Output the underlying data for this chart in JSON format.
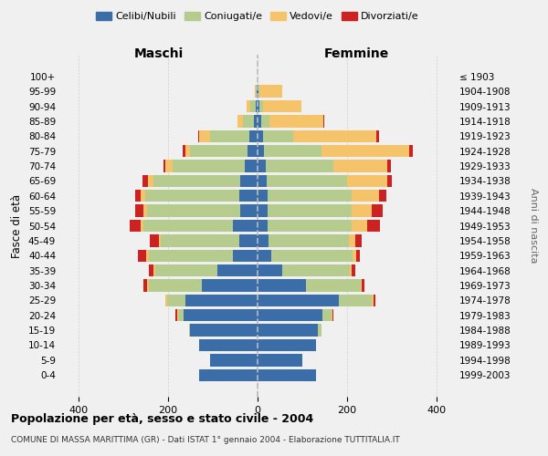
{
  "age_groups": [
    "0-4",
    "5-9",
    "10-14",
    "15-19",
    "20-24",
    "25-29",
    "30-34",
    "35-39",
    "40-44",
    "45-49",
    "50-54",
    "55-59",
    "60-64",
    "65-69",
    "70-74",
    "75-79",
    "80-84",
    "85-89",
    "90-94",
    "95-99",
    "100+"
  ],
  "birth_years": [
    "1999-2003",
    "1994-1998",
    "1989-1993",
    "1984-1988",
    "1979-1983",
    "1974-1978",
    "1969-1973",
    "1964-1968",
    "1959-1963",
    "1954-1958",
    "1949-1953",
    "1944-1948",
    "1939-1943",
    "1934-1938",
    "1929-1933",
    "1924-1928",
    "1919-1923",
    "1914-1918",
    "1909-1913",
    "1904-1908",
    "≤ 1903"
  ],
  "colors": {
    "celibe": "#3b6da8",
    "coniugato": "#b5cc8e",
    "vedovo": "#f5c46a",
    "divorziato": "#cc2222"
  },
  "maschi": {
    "celibe": [
      130,
      105,
      130,
      150,
      165,
      160,
      125,
      90,
      55,
      40,
      55,
      38,
      40,
      38,
      28,
      22,
      18,
      8,
      4,
      2,
      0
    ],
    "coniugato": [
      0,
      0,
      0,
      3,
      12,
      42,
      118,
      138,
      188,
      175,
      200,
      208,
      210,
      195,
      162,
      128,
      88,
      25,
      12,
      2,
      0
    ],
    "vedovo": [
      0,
      0,
      0,
      0,
      3,
      3,
      3,
      4,
      5,
      5,
      5,
      8,
      10,
      12,
      15,
      10,
      25,
      12,
      8,
      2,
      0
    ],
    "divorziato": [
      0,
      0,
      0,
      0,
      3,
      0,
      8,
      10,
      18,
      20,
      25,
      18,
      12,
      12,
      5,
      8,
      2,
      0,
      0,
      0,
      0
    ]
  },
  "femmine": {
    "nubile": [
      130,
      100,
      130,
      135,
      145,
      182,
      108,
      55,
      30,
      25,
      22,
      22,
      22,
      20,
      18,
      15,
      12,
      8,
      5,
      2,
      0
    ],
    "coniugata": [
      0,
      0,
      0,
      8,
      20,
      72,
      122,
      150,
      182,
      178,
      188,
      188,
      188,
      180,
      152,
      128,
      68,
      18,
      8,
      2,
      0
    ],
    "vedova": [
      0,
      0,
      0,
      0,
      2,
      5,
      3,
      5,
      8,
      15,
      35,
      45,
      60,
      90,
      120,
      195,
      185,
      120,
      85,
      50,
      0
    ],
    "divorziata": [
      0,
      0,
      0,
      0,
      3,
      3,
      5,
      8,
      8,
      15,
      28,
      25,
      18,
      10,
      8,
      8,
      5,
      2,
      0,
      0,
      0
    ]
  },
  "xlim": 440,
  "title": "Popolazione per età, sesso e stato civile - 2004",
  "subtitle": "COMUNE DI MASSA MARITTIMA (GR) - Dati ISTAT 1° gennaio 2004 - Elaborazione TUTTITALIA.IT",
  "xlabel_left": "Maschi",
  "xlabel_right": "Femmine",
  "ylabel": "Fasce di età",
  "ylabel_right": "Anni di nascita",
  "bg_color": "#f0f0f0"
}
